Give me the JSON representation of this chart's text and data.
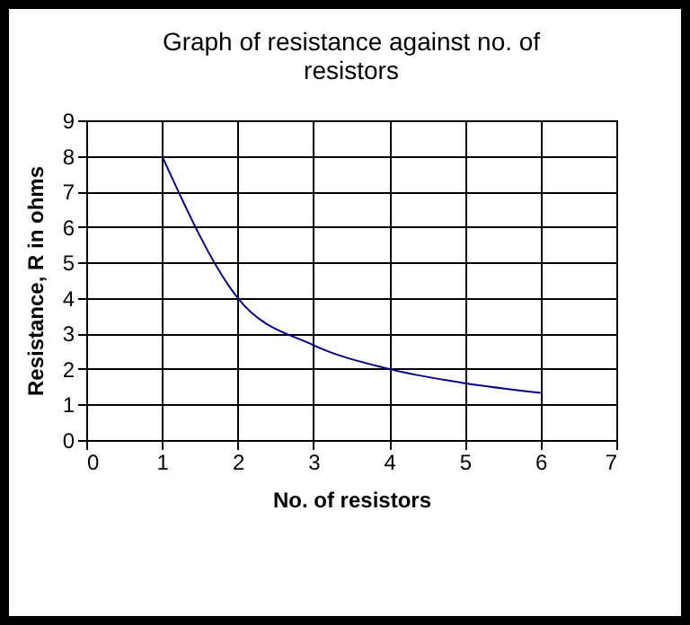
{
  "chart_data": {
    "type": "line",
    "title": "Graph of resistance against no. of resistors",
    "xlabel": "No. of resistors",
    "ylabel": "Resistance, R in ohms",
    "x": [
      1,
      2,
      3,
      4,
      5,
      6
    ],
    "series": [
      {
        "color": "#000080",
        "values": [
          8,
          4,
          2.67,
          2,
          1.6,
          1.33
        ]
      }
    ],
    "xlim": [
      0,
      7
    ],
    "xticks": [
      0,
      1,
      2,
      3,
      4,
      5,
      6,
      7
    ],
    "ylim": [
      0,
      9
    ],
    "yticks": [
      0,
      1,
      2,
      3,
      4,
      5,
      6,
      7,
      8,
      9
    ],
    "grid": true,
    "legend": false,
    "marker": "none",
    "line_style": "solid"
  }
}
